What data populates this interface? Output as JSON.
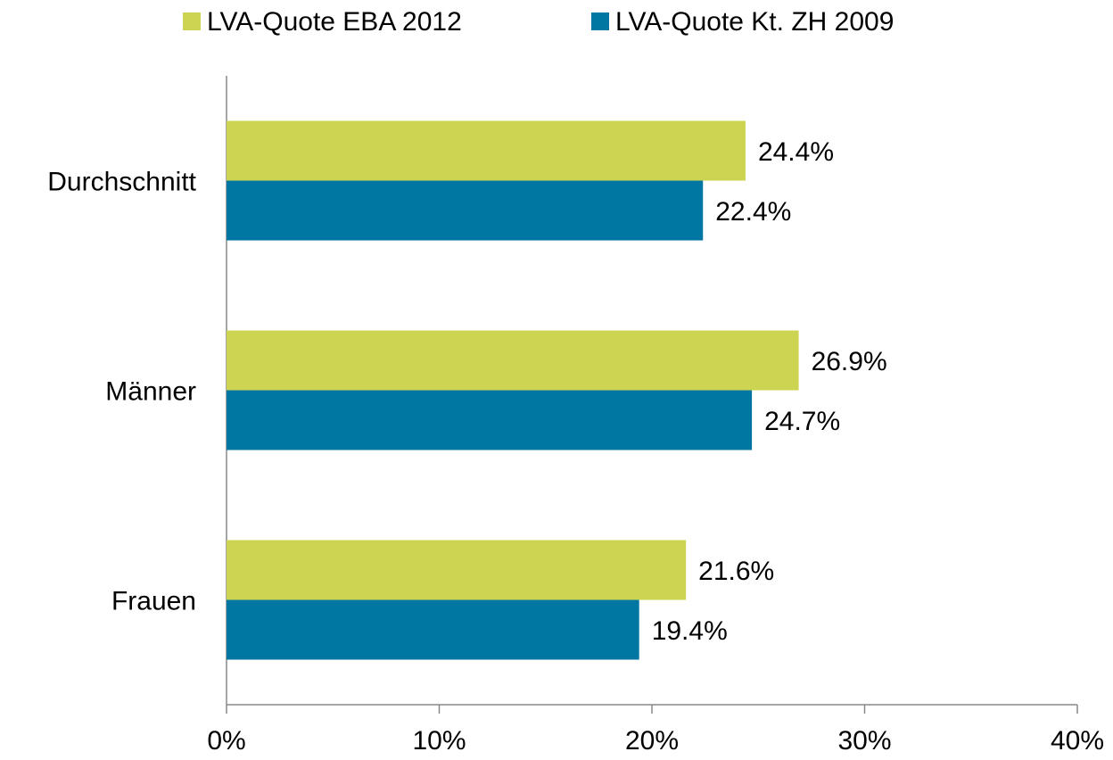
{
  "chart_data": {
    "type": "bar",
    "orientation": "horizontal",
    "categories": [
      "Durchschnitt",
      "Männer",
      "Frauen"
    ],
    "series": [
      {
        "name": "LVA-Quote EBA 2012",
        "color": "#cdd452",
        "values": [
          24.4,
          26.9,
          21.6
        ],
        "value_labels": [
          "24.4%",
          "26.9%",
          "21.6%"
        ]
      },
      {
        "name": "LVA-Quote Kt. ZH 2009",
        "color": "#0077a3",
        "values": [
          22.4,
          24.7,
          19.4
        ],
        "value_labels": [
          "22.4%",
          "24.7%",
          "19.4%"
        ]
      }
    ],
    "xlim": [
      0,
      40
    ],
    "xticks": [
      {
        "value": 0,
        "label": "0%"
      },
      {
        "value": 10,
        "label": "10%"
      },
      {
        "value": 20,
        "label": "20%"
      },
      {
        "value": 30,
        "label": "30%"
      },
      {
        "value": 40,
        "label": "40%"
      }
    ],
    "legend": "top"
  }
}
